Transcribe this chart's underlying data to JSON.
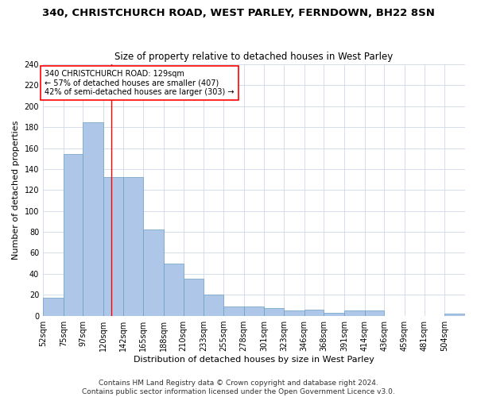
{
  "title": "340, CHRISTCHURCH ROAD, WEST PARLEY, FERNDOWN, BH22 8SN",
  "subtitle": "Size of property relative to detached houses in West Parley",
  "xlabel": "Distribution of detached houses by size in West Parley",
  "ylabel": "Number of detached properties",
  "bar_values": [
    17,
    154,
    185,
    132,
    132,
    82,
    50,
    35,
    20,
    9,
    9,
    7,
    5,
    6,
    3,
    5,
    5,
    0,
    0,
    0,
    2
  ],
  "bar_edges": [
    52,
    75,
    97,
    120,
    142,
    165,
    188,
    210,
    233,
    255,
    278,
    301,
    323,
    346,
    368,
    391,
    414,
    436,
    459,
    481,
    504
  ],
  "xlabels": [
    "52sqm",
    "75sqm",
    "97sqm",
    "120sqm",
    "142sqm",
    "165sqm",
    "188sqm",
    "210sqm",
    "233sqm",
    "255sqm",
    "278sqm",
    "301sqm",
    "323sqm",
    "346sqm",
    "368sqm",
    "391sqm",
    "414sqm",
    "436sqm",
    "459sqm",
    "481sqm",
    "504sqm"
  ],
  "bar_color": "#aec6e8",
  "bar_edge_color": "#6a9ec5",
  "grid_color": "#d0d8e8",
  "red_line_x": 129,
  "annotation_text": "340 CHRISTCHURCH ROAD: 129sqm\n← 57% of detached houses are smaller (407)\n42% of semi-detached houses are larger (303) →",
  "annotation_box_color": "white",
  "annotation_box_edgecolor": "red",
  "ylim": [
    0,
    240
  ],
  "yticks": [
    0,
    20,
    40,
    60,
    80,
    100,
    120,
    140,
    160,
    180,
    200,
    220,
    240
  ],
  "footer_line1": "Contains HM Land Registry data © Crown copyright and database right 2024.",
  "footer_line2": "Contains public sector information licensed under the Open Government Licence v3.0.",
  "bg_color": "white",
  "title_fontsize": 9.5,
  "subtitle_fontsize": 8.5,
  "axis_label_fontsize": 8,
  "tick_fontsize": 7,
  "annotation_fontsize": 7,
  "footer_fontsize": 6.5
}
